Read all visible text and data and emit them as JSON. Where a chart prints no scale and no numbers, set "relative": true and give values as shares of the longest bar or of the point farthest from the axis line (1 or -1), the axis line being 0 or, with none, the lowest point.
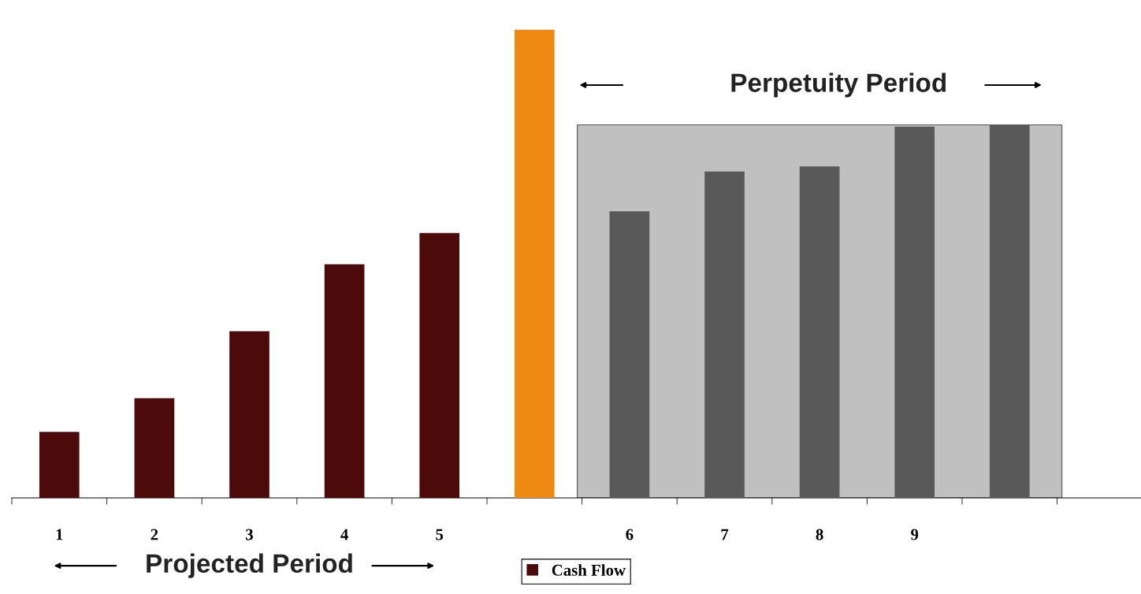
{
  "chart_data": {
    "type": "bar",
    "relative": true,
    "categories": [
      "1",
      "2",
      "3",
      "4",
      "5",
      null,
      "6",
      "7",
      "8",
      "9",
      null
    ],
    "series": [
      {
        "name": "Cash Flow",
        "color": "#4d0a0a",
        "values": [
          0.141,
          0.213,
          0.356,
          0.499,
          0.566,
          1,
          0.612,
          0.697,
          0.708,
          0.793,
          0.797
        ],
        "colors": [
          "#4d0a0a",
          "#4d0a0a",
          "#4d0a0a",
          "#4d0a0a",
          "#4d0a0a",
          "#ee8a12",
          "#595959",
          "#595959",
          "#595959",
          "#595959",
          "#595959"
        ]
      }
    ],
    "annotations": [
      "Projected Period",
      "Perpetuity Period"
    ],
    "legend": "bottom",
    "grid": false
  }
}
